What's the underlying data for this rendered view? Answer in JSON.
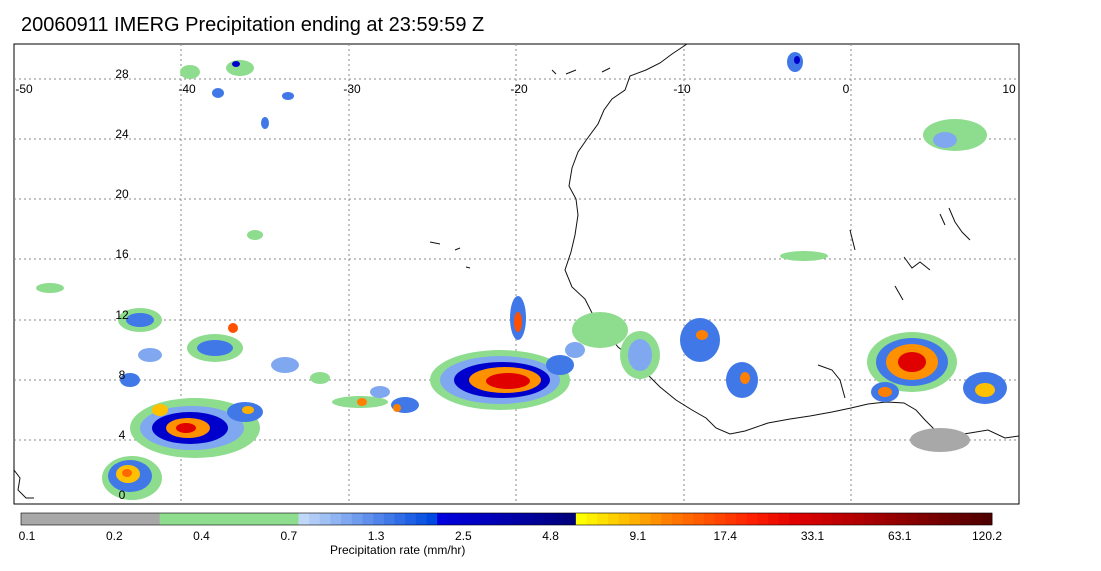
{
  "title": "20060911 IMERG Precipitation ending at 23:59:59 Z",
  "map": {
    "lon_range": [
      -50,
      10
    ],
    "lat_range": [
      0,
      30
    ],
    "lon_labels": [
      "-50",
      "-40",
      "-30",
      "-20",
      "-10",
      "0",
      "10"
    ],
    "lat_labels": [
      "0",
      "4",
      "8",
      "12",
      "16",
      "20",
      "24",
      "28"
    ],
    "colors": {
      "coast": "#111111",
      "grid": "#888888",
      "light_rain": "#7fd07f",
      "moderate_rain": "#2222cc",
      "heavy_rain": "#ff8800",
      "extreme_rain": "#cc1111"
    }
  },
  "colorbar": {
    "label": "Precipitation rate (mm/hr)",
    "tick_labels": [
      "0.1",
      "0.2",
      "0.4",
      "0.7",
      "1.3",
      "2.5",
      "4.8",
      "9.1",
      "17.4",
      "33.1",
      "63.1",
      "120.2"
    ],
    "colors": [
      "#a8a8a8",
      "#a8a8a8",
      "#a8a8a8",
      "#a8a8a8",
      "#a8a8a8",
      "#a8a8a8",
      "#a8a8a8",
      "#a8a8a8",
      "#a8a8a8",
      "#a8a8a8",
      "#a8a8a8",
      "#a8a8a8",
      "#a8a8a8",
      "#8edc8e",
      "#8edc8e",
      "#8edc8e",
      "#8edc8e",
      "#8edc8e",
      "#8edc8e",
      "#8edc8e",
      "#8edc8e",
      "#8edc8e",
      "#8edc8e",
      "#8edc8e",
      "#8edc8e",
      "#8edc8e",
      "#c0d8f8",
      "#b0ccf6",
      "#a0c0f4",
      "#90b4f2",
      "#80a8f0",
      "#709cee",
      "#6090ec",
      "#5084ea",
      "#4078e8",
      "#306ce6",
      "#2060e4",
      "#1054e2",
      "#0048e0",
      "#0000dd",
      "#0000d5",
      "#0000cd",
      "#0000c5",
      "#0000bd",
      "#0000b5",
      "#0000ad",
      "#0000a5",
      "#00009d",
      "#000095",
      "#00008d",
      "#000085",
      "#00007d",
      "#ffff00",
      "#fff000",
      "#ffe000",
      "#ffd000",
      "#ffc000",
      "#ffb000",
      "#ffa000",
      "#ff9000",
      "#ff8000",
      "#ff7400",
      "#ff6800",
      "#ff5c00",
      "#ff5000",
      "#ff4400",
      "#ff3800",
      "#ff2c00",
      "#ff2000",
      "#f81800",
      "#f01000",
      "#e80800",
      "#e00000",
      "#d80000",
      "#d00000",
      "#c80000",
      "#c00000",
      "#b80000",
      "#b00000",
      "#a80000",
      "#a00000",
      "#980000",
      "#900000",
      "#880000",
      "#800000",
      "#780000",
      "#700000",
      "#680000",
      "#600000",
      "#580000",
      "#500000"
    ]
  }
}
